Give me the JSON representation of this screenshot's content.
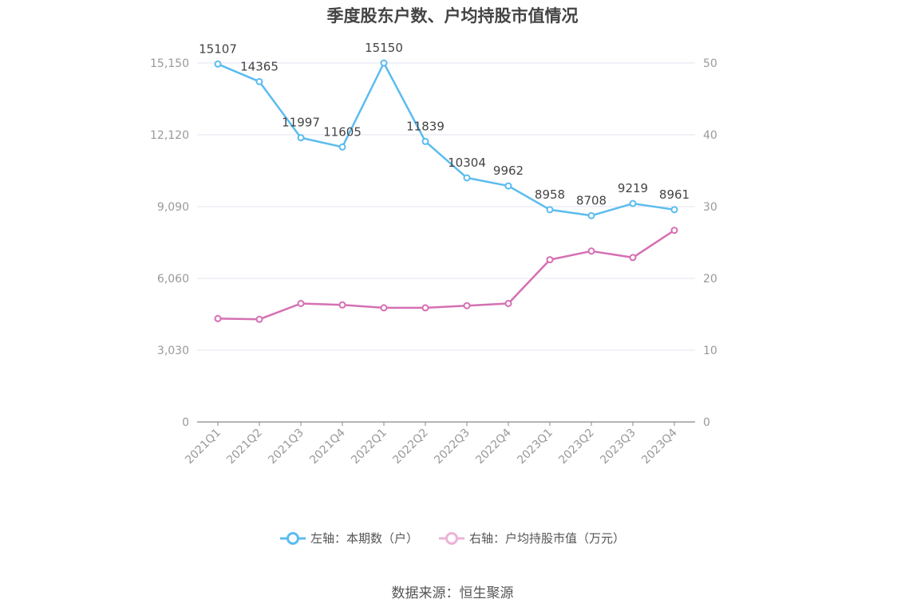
{
  "chart_data": {
    "type": "line",
    "title": "季度股东户数、户均持股市值情况",
    "categories": [
      "2021Q1",
      "2021Q2",
      "2021Q3",
      "2021Q4",
      "2022Q1",
      "2022Q2",
      "2022Q3",
      "2022Q4",
      "2023Q1",
      "2023Q2",
      "2023Q3",
      "2023Q4"
    ],
    "left_axis": {
      "ylim": [
        0,
        15150
      ],
      "ticks": [
        "0",
        "3,030",
        "6,060",
        "9,090",
        "12,120",
        "15,150"
      ]
    },
    "right_axis": {
      "ylim": [
        0,
        50
      ],
      "ticks": [
        "0",
        "10",
        "20",
        "30",
        "40",
        "50"
      ]
    },
    "series": [
      {
        "name": "左轴：本期数（户）",
        "axis": "left",
        "color": "#5bbcef",
        "values": [
          15107,
          14365,
          11997,
          11605,
          15150,
          11839,
          10304,
          9962,
          8958,
          8708,
          9219,
          8961
        ],
        "labels": [
          "15107",
          "14365",
          "11997",
          "11605",
          "15150",
          "11839",
          "10304",
          "9962",
          "8958",
          "8708",
          "9219",
          "8961"
        ]
      },
      {
        "name": "右轴：户均持股市值（万元）",
        "axis": "right",
        "color": "#d570b3",
        "values": [
          14.4,
          14.3,
          16.5,
          16.3,
          15.9,
          15.9,
          16.2,
          16.5,
          22.6,
          23.8,
          22.9,
          26.7
        ]
      }
    ],
    "grid": true,
    "legend_position": "bottom"
  },
  "source_text": "数据来源：恒生聚源"
}
